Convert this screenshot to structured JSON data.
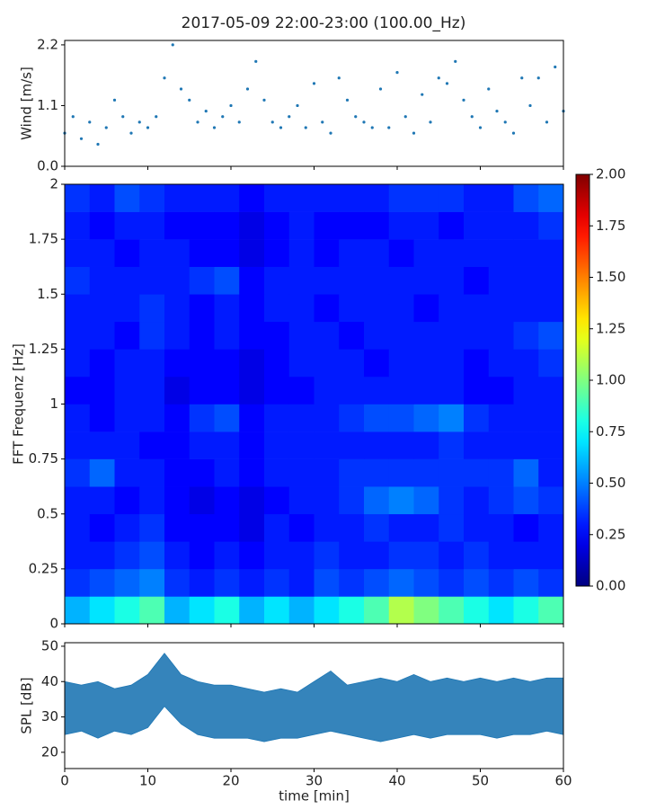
{
  "title": "2017-05-09 22:00-23:00 (100.00_Hz)",
  "chart_data": [
    {
      "type": "scatter",
      "ylabel": "Wind [m/s]",
      "color": "#1f77b4",
      "x": [
        0,
        1,
        2,
        3,
        4,
        5,
        6,
        7,
        8,
        9,
        10,
        11,
        12,
        13,
        14,
        15,
        16,
        17,
        18,
        19,
        20,
        21,
        22,
        23,
        24,
        25,
        26,
        27,
        28,
        29,
        30,
        31,
        32,
        33,
        34,
        35,
        36,
        37,
        38,
        39,
        40,
        41,
        42,
        43,
        44,
        45,
        46,
        47,
        48,
        49,
        50,
        51,
        52,
        53,
        54,
        55,
        56,
        57,
        58,
        59,
        60
      ],
      "values": [
        0.6,
        0.9,
        0.5,
        0.8,
        0.4,
        0.7,
        1.2,
        0.9,
        0.6,
        0.8,
        0.7,
        0.9,
        1.6,
        2.2,
        1.4,
        1.2,
        0.8,
        1.0,
        0.7,
        0.9,
        1.1,
        0.8,
        1.4,
        1.9,
        1.2,
        0.8,
        0.7,
        0.9,
        1.1,
        0.7,
        1.5,
        0.8,
        0.6,
        1.6,
        1.2,
        0.9,
        0.8,
        0.7,
        1.4,
        0.7,
        1.7,
        0.9,
        0.6,
        1.3,
        0.8,
        1.6,
        1.5,
        1.9,
        1.2,
        0.9,
        0.7,
        1.4,
        1.0,
        0.8,
        0.6,
        1.6,
        1.1,
        1.6,
        0.8,
        1.8,
        1.0
      ],
      "xlim": [
        0,
        60
      ],
      "xticks": [
        0,
        10,
        20,
        30,
        40,
        50,
        60
      ],
      "ylim": [
        0,
        2.28
      ],
      "yticks": [
        {
          "value": 0,
          "label": "0.0"
        },
        1.1,
        2.2
      ]
    },
    {
      "type": "heatmap",
      "ylabel": "FFT Frequenz [Hz]",
      "colormap": "jet",
      "xbins": [
        0,
        3,
        6,
        9,
        12,
        15,
        18,
        21,
        24,
        27,
        30,
        33,
        36,
        39,
        42,
        45,
        48,
        51,
        54,
        57,
        60
      ],
      "ybins": [
        0,
        0.125,
        0.25,
        0.375,
        0.5,
        0.625,
        0.75,
        0.875,
        1,
        1.125,
        1.25,
        1.375,
        1.5,
        1.625,
        1.75,
        1.875,
        2
      ],
      "values": [
        [
          0.6,
          0.7,
          0.8,
          0.9,
          0.6,
          0.7,
          0.8,
          0.6,
          0.7,
          0.6,
          0.7,
          0.8,
          0.9,
          1.1,
          1.0,
          0.9,
          0.8,
          0.7,
          0.8,
          0.9
        ],
        [
          0.35,
          0.4,
          0.45,
          0.5,
          0.35,
          0.3,
          0.35,
          0.3,
          0.35,
          0.3,
          0.4,
          0.35,
          0.4,
          0.45,
          0.4,
          0.35,
          0.4,
          0.35,
          0.4,
          0.35
        ],
        [
          0.3,
          0.3,
          0.35,
          0.4,
          0.3,
          0.25,
          0.3,
          0.25,
          0.3,
          0.3,
          0.35,
          0.3,
          0.3,
          0.35,
          0.35,
          0.3,
          0.35,
          0.3,
          0.3,
          0.3
        ],
        [
          0.3,
          0.25,
          0.3,
          0.35,
          0.25,
          0.25,
          0.25,
          0.2,
          0.3,
          0.25,
          0.3,
          0.3,
          0.35,
          0.3,
          0.3,
          0.35,
          0.3,
          0.3,
          0.25,
          0.3
        ],
        [
          0.3,
          0.3,
          0.25,
          0.3,
          0.25,
          0.2,
          0.25,
          0.2,
          0.25,
          0.3,
          0.3,
          0.35,
          0.45,
          0.5,
          0.45,
          0.35,
          0.3,
          0.35,
          0.4,
          0.35
        ],
        [
          0.35,
          0.45,
          0.3,
          0.3,
          0.25,
          0.25,
          0.3,
          0.25,
          0.3,
          0.3,
          0.3,
          0.35,
          0.35,
          0.35,
          0.35,
          0.35,
          0.35,
          0.35,
          0.45,
          0.3
        ],
        [
          0.3,
          0.3,
          0.3,
          0.25,
          0.25,
          0.3,
          0.3,
          0.25,
          0.3,
          0.3,
          0.3,
          0.3,
          0.3,
          0.3,
          0.3,
          0.35,
          0.3,
          0.3,
          0.3,
          0.3
        ],
        [
          0.3,
          0.25,
          0.3,
          0.3,
          0.25,
          0.35,
          0.4,
          0.25,
          0.3,
          0.3,
          0.3,
          0.35,
          0.4,
          0.4,
          0.45,
          0.5,
          0.35,
          0.3,
          0.3,
          0.3
        ],
        [
          0.25,
          0.25,
          0.3,
          0.3,
          0.2,
          0.25,
          0.25,
          0.2,
          0.25,
          0.25,
          0.3,
          0.3,
          0.3,
          0.3,
          0.3,
          0.3,
          0.25,
          0.25,
          0.3,
          0.3
        ],
        [
          0.3,
          0.25,
          0.3,
          0.3,
          0.25,
          0.25,
          0.25,
          0.2,
          0.25,
          0.3,
          0.3,
          0.3,
          0.25,
          0.3,
          0.3,
          0.3,
          0.25,
          0.3,
          0.3,
          0.35
        ],
        [
          0.3,
          0.3,
          0.25,
          0.35,
          0.3,
          0.25,
          0.3,
          0.25,
          0.25,
          0.3,
          0.3,
          0.25,
          0.3,
          0.3,
          0.3,
          0.3,
          0.3,
          0.3,
          0.35,
          0.4
        ],
        [
          0.3,
          0.3,
          0.3,
          0.35,
          0.3,
          0.25,
          0.3,
          0.25,
          0.3,
          0.3,
          0.25,
          0.3,
          0.3,
          0.3,
          0.25,
          0.3,
          0.3,
          0.3,
          0.3,
          0.3
        ],
        [
          0.35,
          0.3,
          0.3,
          0.3,
          0.3,
          0.35,
          0.4,
          0.25,
          0.3,
          0.3,
          0.3,
          0.3,
          0.3,
          0.3,
          0.3,
          0.3,
          0.25,
          0.3,
          0.3,
          0.3
        ],
        [
          0.3,
          0.3,
          0.25,
          0.3,
          0.3,
          0.25,
          0.25,
          0.2,
          0.25,
          0.3,
          0.25,
          0.3,
          0.3,
          0.25,
          0.3,
          0.3,
          0.3,
          0.3,
          0.3,
          0.3
        ],
        [
          0.3,
          0.25,
          0.3,
          0.3,
          0.25,
          0.25,
          0.25,
          0.2,
          0.25,
          0.3,
          0.25,
          0.25,
          0.25,
          0.3,
          0.3,
          0.25,
          0.3,
          0.3,
          0.3,
          0.35
        ],
        [
          0.35,
          0.3,
          0.4,
          0.35,
          0.3,
          0.3,
          0.3,
          0.25,
          0.3,
          0.3,
          0.3,
          0.3,
          0.3,
          0.35,
          0.35,
          0.35,
          0.3,
          0.3,
          0.4,
          0.45
        ]
      ],
      "xlim": [
        0,
        60
      ],
      "xticks": [
        0,
        10,
        20,
        30,
        40,
        50,
        60
      ],
      "ylim": [
        0,
        2
      ],
      "yticks": [
        0,
        0.25,
        0.5,
        0.75,
        1,
        1.25,
        1.5,
        1.75,
        2
      ],
      "colorlim": [
        0,
        2
      ],
      "colorticks": [
        {
          "value": 0,
          "label": "0.00"
        },
        0.25,
        {
          "value": 0.5,
          "label": "0.50"
        },
        0.75,
        {
          "value": 1,
          "label": "1.00"
        },
        1.25,
        {
          "value": 1.5,
          "label": "1.50"
        },
        1.75,
        {
          "value": 2,
          "label": "2.00"
        }
      ]
    },
    {
      "type": "band",
      "ylabel": "SPL [dB]",
      "xlabel": "time [min]",
      "color": "#1f77b4",
      "x": [
        0,
        2,
        4,
        6,
        8,
        10,
        12,
        14,
        16,
        18,
        20,
        22,
        24,
        26,
        28,
        30,
        32,
        34,
        36,
        38,
        40,
        42,
        44,
        46,
        48,
        50,
        52,
        54,
        56,
        58,
        60
      ],
      "upper": [
        40,
        39,
        40,
        38,
        39,
        42,
        48,
        42,
        40,
        39,
        39,
        38,
        37,
        38,
        37,
        40,
        43,
        39,
        40,
        41,
        40,
        42,
        40,
        41,
        40,
        41,
        40,
        41,
        40,
        41,
        41
      ],
      "lower": [
        25,
        26,
        24,
        26,
        25,
        27,
        33,
        28,
        25,
        24,
        24,
        24,
        23,
        24,
        24,
        25,
        26,
        25,
        24,
        23,
        24,
        25,
        24,
        25,
        25,
        25,
        24,
        25,
        25,
        26,
        25
      ],
      "xlim": [
        0,
        60
      ],
      "xticks": [
        0,
        10,
        20,
        30,
        40,
        50,
        60
      ],
      "ylim": [
        15.4,
        51
      ],
      "yticks": [
        20,
        30,
        40,
        50
      ]
    }
  ]
}
